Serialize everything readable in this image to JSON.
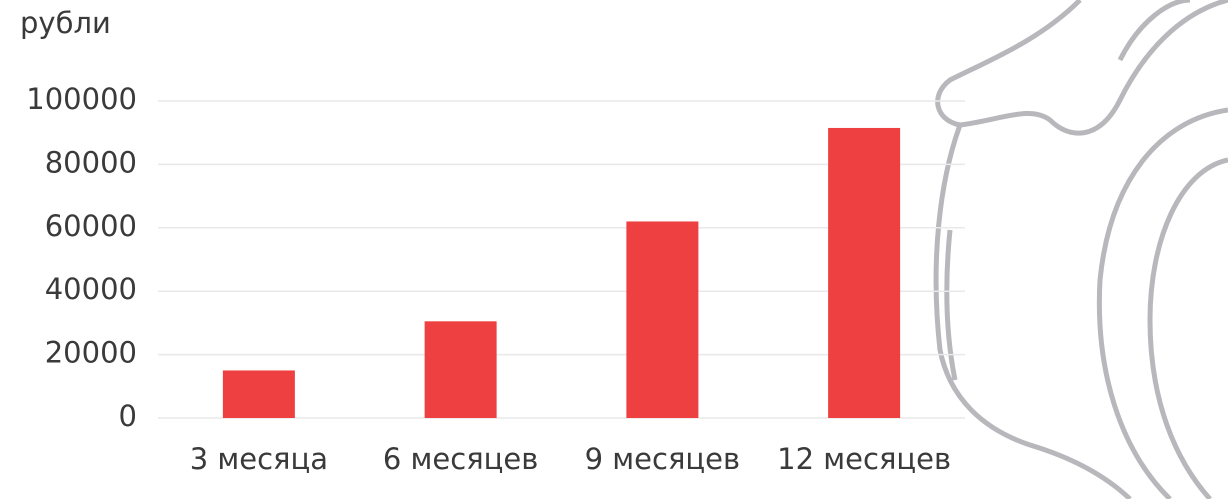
{
  "chart_data": {
    "type": "bar",
    "y_label": "рубли",
    "categories": [
      "3 месяца",
      "6 месяцев",
      "9 месяцев",
      "12 месяцев"
    ],
    "values": [
      15000,
      30500,
      62000,
      91500
    ],
    "color": "#ee4040",
    "ylim": [
      0,
      100000
    ],
    "yticks": [
      0,
      20000,
      40000,
      60000,
      80000,
      100000
    ],
    "grid": true
  }
}
